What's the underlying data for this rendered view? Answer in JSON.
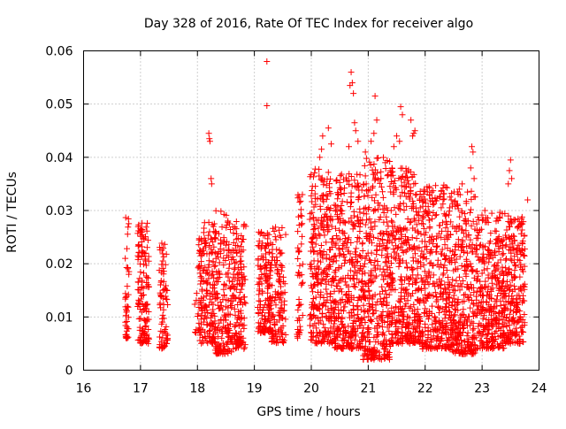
{
  "chart_data": {
    "type": "scatter",
    "title": "Day 328 of 2016, Rate Of TEC Index for receiver algo",
    "xlabel": "GPS time / hours",
    "ylabel": "ROTI / TECUs",
    "xlim": [
      16,
      24
    ],
    "ylim": [
      0,
      0.06
    ],
    "x_ticks": [
      16,
      17,
      18,
      19,
      20,
      21,
      22,
      23,
      24
    ],
    "x_tick_labels": [
      "16",
      "17",
      "18",
      "19",
      "20",
      "21",
      "22",
      "23",
      "24"
    ],
    "y_ticks": [
      0,
      0.01,
      0.02,
      0.03,
      0.04,
      0.05,
      0.06
    ],
    "y_tick_labels": [
      "0",
      "0.01",
      "0.02",
      "0.03",
      "0.04",
      "0.05",
      "0.06"
    ],
    "grid": true,
    "marker": "+",
    "color": "#ff0000",
    "series": [
      {
        "name": "ROTI",
        "segments": [
          {
            "t0": 16.73,
            "t1": 16.8,
            "lo": 0.006,
            "hi": 0.029,
            "n": 45
          },
          {
            "t0": 16.95,
            "t1": 17.15,
            "lo": 0.005,
            "hi": 0.028,
            "n": 140
          },
          {
            "t0": 17.33,
            "t1": 17.48,
            "lo": 0.004,
            "hi": 0.024,
            "n": 75
          },
          {
            "t0": 17.95,
            "t1": 18.02,
            "lo": 0.007,
            "hi": 0.022,
            "n": 10
          },
          {
            "t0": 18.02,
            "t1": 18.3,
            "lo": 0.005,
            "hi": 0.028,
            "n": 170
          },
          {
            "t0": 18.3,
            "t1": 18.6,
            "lo": 0.003,
            "hi": 0.03,
            "n": 180
          },
          {
            "t0": 18.6,
            "t1": 18.85,
            "lo": 0.004,
            "hi": 0.028,
            "n": 150
          },
          {
            "t0": 19.05,
            "t1": 19.3,
            "lo": 0.007,
            "hi": 0.026,
            "n": 150
          },
          {
            "t0": 19.3,
            "t1": 19.55,
            "lo": 0.005,
            "hi": 0.027,
            "n": 120
          },
          {
            "t0": 19.75,
            "t1": 19.85,
            "lo": 0.006,
            "hi": 0.033,
            "n": 50
          },
          {
            "t0": 19.97,
            "t1": 20.4,
            "lo": 0.005,
            "hi": 0.038,
            "n": 300
          },
          {
            "t0": 20.4,
            "t1": 20.9,
            "lo": 0.004,
            "hi": 0.037,
            "n": 360
          },
          {
            "t0": 20.9,
            "t1": 21.4,
            "lo": 0.002,
            "hi": 0.04,
            "n": 360
          },
          {
            "t0": 21.4,
            "t1": 21.9,
            "lo": 0.005,
            "hi": 0.038,
            "n": 360
          },
          {
            "t0": 21.9,
            "t1": 22.4,
            "lo": 0.004,
            "hi": 0.035,
            "n": 340
          },
          {
            "t0": 22.4,
            "t1": 22.9,
            "lo": 0.003,
            "hi": 0.034,
            "n": 340
          },
          {
            "t0": 22.9,
            "t1": 23.4,
            "lo": 0.004,
            "hi": 0.03,
            "n": 340
          },
          {
            "t0": 23.4,
            "t1": 23.75,
            "lo": 0.005,
            "hi": 0.029,
            "n": 230
          }
        ],
        "outliers": [
          [
            19.22,
            0.058
          ],
          [
            19.22,
            0.0497
          ],
          [
            18.2,
            0.0445
          ],
          [
            18.21,
            0.0435
          ],
          [
            18.22,
            0.043
          ],
          [
            18.24,
            0.036
          ],
          [
            18.25,
            0.035
          ],
          [
            20.2,
            0.044
          ],
          [
            20.3,
            0.0455
          ],
          [
            20.35,
            0.0425
          ],
          [
            20.18,
            0.0415
          ],
          [
            20.15,
            0.04
          ],
          [
            20.7,
            0.056
          ],
          [
            20.72,
            0.054
          ],
          [
            20.68,
            0.0535
          ],
          [
            20.74,
            0.052
          ],
          [
            20.76,
            0.0465
          ],
          [
            20.78,
            0.045
          ],
          [
            20.82,
            0.043
          ],
          [
            20.66,
            0.042
          ],
          [
            21.12,
            0.0515
          ],
          [
            21.15,
            0.047
          ],
          [
            21.1,
            0.0445
          ],
          [
            21.05,
            0.043
          ],
          [
            21.45,
            0.042
          ],
          [
            21.5,
            0.044
          ],
          [
            21.57,
            0.0495
          ],
          [
            21.6,
            0.048
          ],
          [
            21.55,
            0.043
          ],
          [
            21.75,
            0.047
          ],
          [
            21.8,
            0.0445
          ],
          [
            21.82,
            0.045
          ],
          [
            21.78,
            0.044
          ],
          [
            22.82,
            0.042
          ],
          [
            22.84,
            0.041
          ],
          [
            22.8,
            0.038
          ],
          [
            22.86,
            0.036
          ],
          [
            23.5,
            0.0395
          ],
          [
            23.48,
            0.0375
          ],
          [
            23.52,
            0.036
          ],
          [
            23.46,
            0.035
          ],
          [
            23.8,
            0.032
          ],
          [
            22.65,
            0.035
          ],
          [
            22.6,
            0.034
          ],
          [
            20.95,
            0.041
          ],
          [
            21.3,
            0.039
          ]
        ]
      }
    ]
  }
}
